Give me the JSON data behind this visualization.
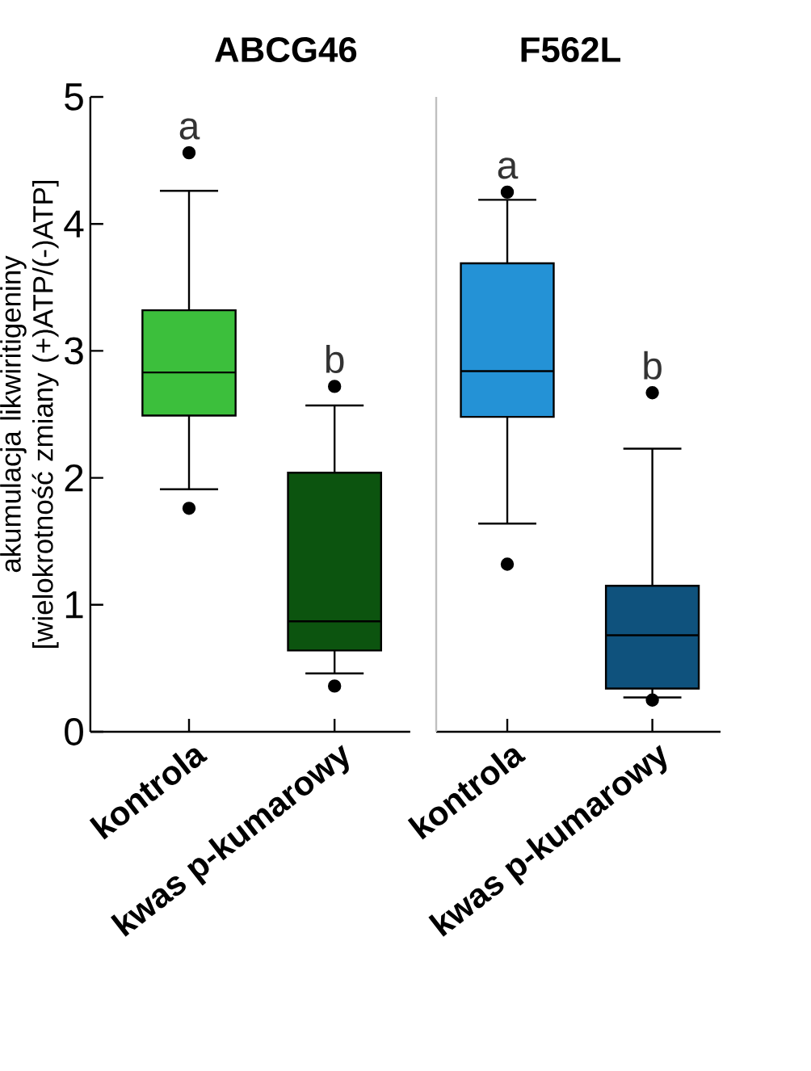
{
  "chart_data": [
    {
      "type": "box",
      "title": "ABCG46",
      "ylabel": "akumulacja likwiritigeniny [wielokrotność zmiany (+)ATP/(-)ATP]",
      "categories": [
        "kontrola",
        "kwas p-kumarowy"
      ],
      "colors": [
        "#3cbf3c",
        "#0c540f"
      ],
      "ylim": [
        0,
        5
      ],
      "yticks": [
        0,
        1,
        2,
        3,
        4,
        5
      ],
      "boxes": [
        {
          "low": 1.91,
          "q1": 2.49,
          "median": 2.83,
          "q3": 3.32,
          "high": 4.26,
          "outliers": [
            4.56,
            1.76
          ]
        },
        {
          "low": 0.46,
          "q1": 0.64,
          "median": 0.87,
          "q3": 2.04,
          "high": 2.57,
          "outliers": [
            2.72,
            0.36
          ]
        }
      ],
      "annotations": [
        "a",
        "b"
      ]
    },
    {
      "type": "box",
      "title": "F562L",
      "categories": [
        "kontrola",
        "kwas p-kumarowy"
      ],
      "colors": [
        "#2492d6",
        "#0f527d"
      ],
      "ylim": [
        0,
        5
      ],
      "yticks": [
        0,
        1,
        2,
        3,
        4,
        5
      ],
      "tick_labels": "x",
      "boxes": [
        {
          "low": 1.64,
          "q1": 2.48,
          "median": 2.84,
          "q3": 3.69,
          "high": 4.19,
          "outliers": [
            4.25,
            1.32
          ]
        },
        {
          "low": 0.27,
          "q1": 0.34,
          "median": 0.76,
          "q3": 1.15,
          "high": 2.23,
          "outliers": [
            2.67,
            0.25
          ]
        }
      ],
      "annotations": [
        "a",
        "b"
      ]
    }
  ]
}
